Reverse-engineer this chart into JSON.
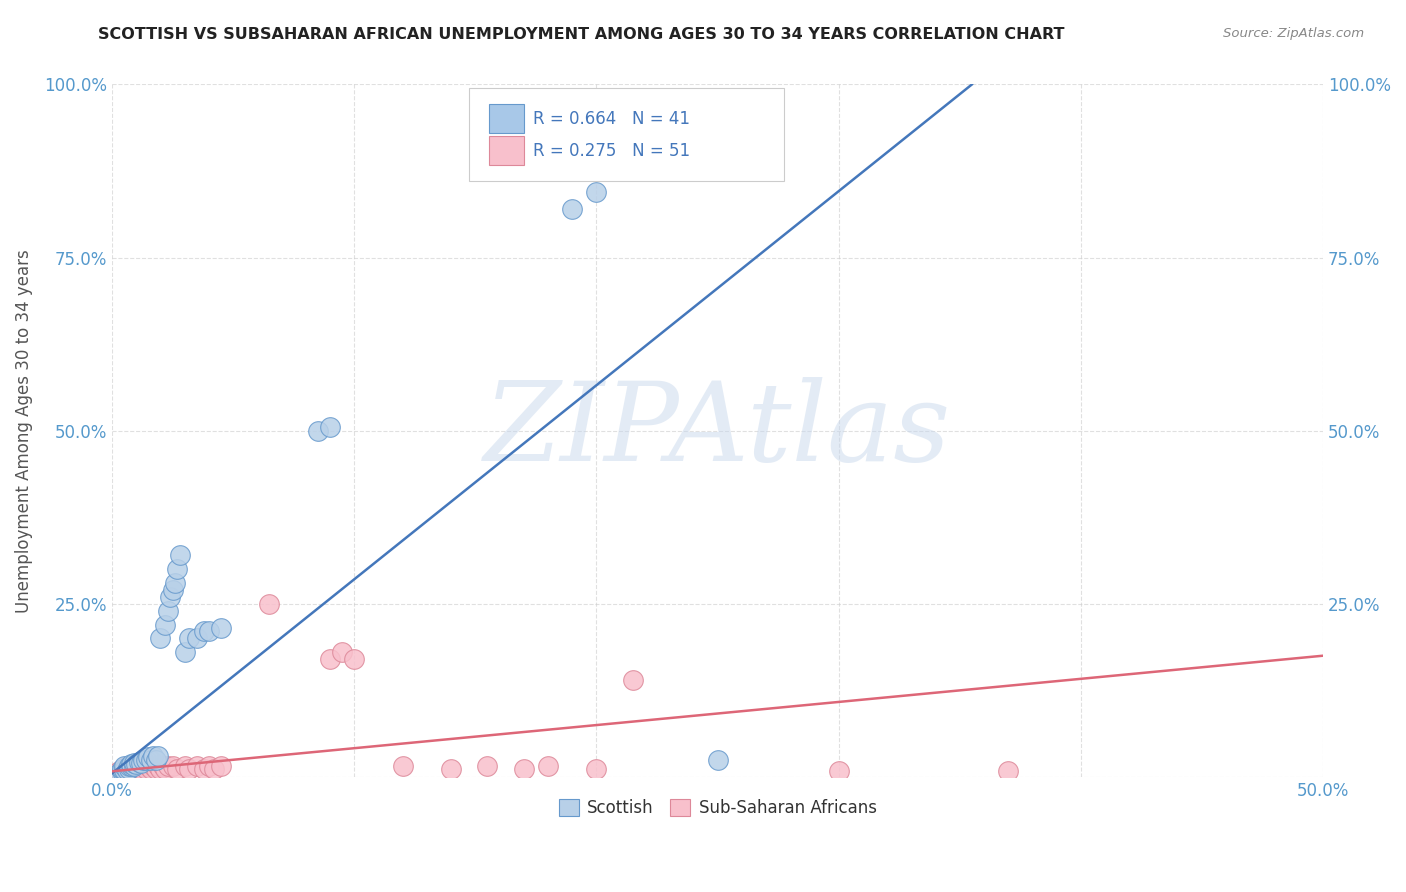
{
  "title": "SCOTTISH VS SUBSAHARAN AFRICAN UNEMPLOYMENT AMONG AGES 30 TO 34 YEARS CORRELATION CHART",
  "source": "Source: ZipAtlas.com",
  "ylabel": "Unemployment Among Ages 30 to 34 years",
  "xlim": [
    0.0,
    0.5
  ],
  "ylim": [
    0.0,
    1.0
  ],
  "xticks": [
    0.0,
    0.1,
    0.2,
    0.3,
    0.4,
    0.5
  ],
  "yticks": [
    0.0,
    0.25,
    0.5,
    0.75,
    1.0
  ],
  "xticklabels": [
    "0.0%",
    "",
    "",
    "",
    "",
    "50.0%"
  ],
  "yticklabels": [
    "",
    "25.0%",
    "50.0%",
    "75.0%",
    "100.0%"
  ],
  "legend_entries": [
    {
      "label": "Scottish",
      "color": "#a8c8e8",
      "edge": "#6699cc",
      "R": "0.664",
      "N": "41"
    },
    {
      "label": "Sub-Saharan Africans",
      "color": "#f8c0cc",
      "edge": "#dd8899",
      "R": "0.275",
      "N": "51"
    }
  ],
  "blue_scatter": [
    [
      0.003,
      0.005
    ],
    [
      0.004,
      0.008
    ],
    [
      0.004,
      0.012
    ],
    [
      0.005,
      0.01
    ],
    [
      0.005,
      0.015
    ],
    [
      0.006,
      0.01
    ],
    [
      0.007,
      0.012
    ],
    [
      0.007,
      0.015
    ],
    [
      0.008,
      0.015
    ],
    [
      0.008,
      0.018
    ],
    [
      0.009,
      0.015
    ],
    [
      0.009,
      0.02
    ],
    [
      0.01,
      0.018
    ],
    [
      0.011,
      0.022
    ],
    [
      0.012,
      0.02
    ],
    [
      0.013,
      0.025
    ],
    [
      0.014,
      0.025
    ],
    [
      0.015,
      0.028
    ],
    [
      0.016,
      0.025
    ],
    [
      0.017,
      0.03
    ],
    [
      0.018,
      0.025
    ],
    [
      0.019,
      0.03
    ],
    [
      0.02,
      0.2
    ],
    [
      0.022,
      0.22
    ],
    [
      0.023,
      0.24
    ],
    [
      0.024,
      0.26
    ],
    [
      0.025,
      0.27
    ],
    [
      0.026,
      0.28
    ],
    [
      0.027,
      0.3
    ],
    [
      0.028,
      0.32
    ],
    [
      0.03,
      0.18
    ],
    [
      0.032,
      0.2
    ],
    [
      0.035,
      0.2
    ],
    [
      0.038,
      0.21
    ],
    [
      0.04,
      0.21
    ],
    [
      0.045,
      0.215
    ],
    [
      0.085,
      0.5
    ],
    [
      0.09,
      0.505
    ],
    [
      0.19,
      0.82
    ],
    [
      0.2,
      0.845
    ],
    [
      0.25,
      0.025
    ]
  ],
  "pink_scatter": [
    [
      0.002,
      0.005
    ],
    [
      0.003,
      0.008
    ],
    [
      0.004,
      0.01
    ],
    [
      0.005,
      0.008
    ],
    [
      0.005,
      0.012
    ],
    [
      0.006,
      0.01
    ],
    [
      0.006,
      0.015
    ],
    [
      0.007,
      0.01
    ],
    [
      0.007,
      0.012
    ],
    [
      0.008,
      0.01
    ],
    [
      0.008,
      0.015
    ],
    [
      0.009,
      0.012
    ],
    [
      0.009,
      0.015
    ],
    [
      0.01,
      0.012
    ],
    [
      0.01,
      0.015
    ],
    [
      0.011,
      0.012
    ],
    [
      0.011,
      0.015
    ],
    [
      0.012,
      0.012
    ],
    [
      0.013,
      0.015
    ],
    [
      0.014,
      0.012
    ],
    [
      0.015,
      0.015
    ],
    [
      0.016,
      0.012
    ],
    [
      0.017,
      0.015
    ],
    [
      0.018,
      0.012
    ],
    [
      0.019,
      0.015
    ],
    [
      0.02,
      0.012
    ],
    [
      0.021,
      0.015
    ],
    [
      0.022,
      0.012
    ],
    [
      0.023,
      0.015
    ],
    [
      0.025,
      0.015
    ],
    [
      0.027,
      0.012
    ],
    [
      0.03,
      0.015
    ],
    [
      0.032,
      0.012
    ],
    [
      0.035,
      0.015
    ],
    [
      0.038,
      0.012
    ],
    [
      0.04,
      0.015
    ],
    [
      0.042,
      0.012
    ],
    [
      0.045,
      0.015
    ],
    [
      0.065,
      0.25
    ],
    [
      0.09,
      0.17
    ],
    [
      0.095,
      0.18
    ],
    [
      0.1,
      0.17
    ],
    [
      0.12,
      0.015
    ],
    [
      0.14,
      0.012
    ],
    [
      0.155,
      0.015
    ],
    [
      0.17,
      0.012
    ],
    [
      0.18,
      0.015
    ],
    [
      0.2,
      0.012
    ],
    [
      0.215,
      0.14
    ],
    [
      0.3,
      0.008
    ],
    [
      0.37,
      0.008
    ]
  ],
  "blue_line": {
    "x": [
      0.0,
      0.355
    ],
    "y": [
      0.005,
      1.0
    ]
  },
  "pink_line": {
    "x": [
      0.0,
      0.5
    ],
    "y": [
      0.008,
      0.175
    ]
  },
  "watermark": "ZIPAtlas",
  "watermark_color": "#c8d8ec",
  "bg_color": "#ffffff",
  "title_color": "#222222",
  "title_fontsize": 11.5,
  "ylabel_color": "#555555",
  "tick_color": "#5599cc",
  "grid_color": "#cccccc",
  "blue_line_color": "#4477bb",
  "pink_line_color": "#dd6677",
  "blue_dot_face": "#b8d0e8",
  "blue_dot_edge": "#6699cc",
  "pink_dot_face": "#f8c0cc",
  "pink_dot_edge": "#dd8899",
  "legend_R_color": "#4477bb",
  "legend_N_color": "#33aa44",
  "source_color": "#888888"
}
